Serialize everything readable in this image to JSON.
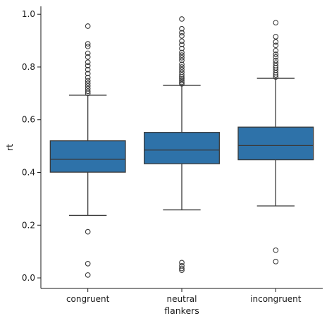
{
  "chart_data": {
    "type": "box",
    "xlabel": "flankers",
    "ylabel": "rt",
    "ylim": [
      -0.04,
      1.03
    ],
    "yticks": [
      0.0,
      0.2,
      0.4,
      0.6,
      0.8,
      1.0
    ],
    "ytick_labels": [
      "0.0",
      "0.2",
      "0.4",
      "0.6",
      "0.8",
      "1.0"
    ],
    "categories": [
      "congruent",
      "neutral",
      "incongruent"
    ],
    "box_color": "#2e72a9",
    "line_color": "#3a3a3a",
    "boxes": [
      {
        "category": "congruent",
        "whisker_low": 0.237,
        "q1": 0.401,
        "median": 0.45,
        "q3": 0.52,
        "whisker_high": 0.693,
        "outliers": [
          0.955,
          0.888,
          0.878,
          0.852,
          0.838,
          0.818,
          0.805,
          0.79,
          0.775,
          0.76,
          0.748,
          0.738,
          0.728,
          0.718,
          0.708,
          0.7,
          0.175,
          0.054,
          0.011
        ]
      },
      {
        "category": "neutral",
        "whisker_low": 0.258,
        "q1": 0.433,
        "median": 0.485,
        "q3": 0.552,
        "whisker_high": 0.73,
        "outliers": [
          0.982,
          0.945,
          0.93,
          0.918,
          0.898,
          0.885,
          0.87,
          0.855,
          0.845,
          0.835,
          0.825,
          0.81,
          0.8,
          0.79,
          0.78,
          0.77,
          0.762,
          0.755,
          0.748,
          0.742,
          0.736,
          0.058,
          0.046,
          0.036,
          0.029
        ]
      },
      {
        "category": "incongruent",
        "whisker_low": 0.273,
        "q1": 0.448,
        "median": 0.502,
        "q3": 0.572,
        "whisker_high": 0.757,
        "outliers": [
          0.968,
          0.915,
          0.895,
          0.882,
          0.862,
          0.848,
          0.838,
          0.825,
          0.815,
          0.805,
          0.797,
          0.788,
          0.778,
          0.77,
          0.762,
          0.105,
          0.062
        ]
      }
    ]
  }
}
